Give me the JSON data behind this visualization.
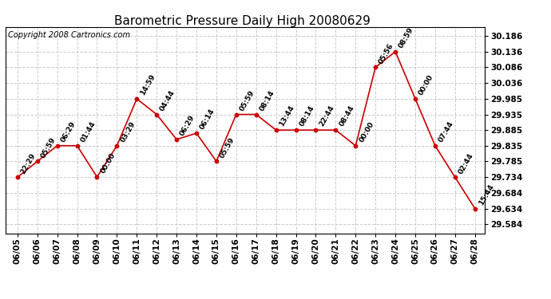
{
  "title": "Barometric Pressure Daily High 20080629",
  "copyright": "Copyright 2008 Cartronics.com",
  "dates": [
    "06/05",
    "06/06",
    "06/07",
    "06/08",
    "06/09",
    "06/10",
    "06/11",
    "06/12",
    "06/13",
    "06/14",
    "06/15",
    "06/16",
    "06/17",
    "06/18",
    "06/19",
    "06/20",
    "06/21",
    "06/22",
    "06/23",
    "06/24",
    "06/25",
    "06/26",
    "06/27",
    "06/28"
  ],
  "values": [
    29.734,
    29.785,
    29.835,
    29.835,
    29.735,
    29.835,
    29.985,
    29.935,
    29.855,
    29.875,
    29.785,
    29.935,
    29.935,
    29.885,
    29.885,
    29.885,
    29.885,
    29.835,
    30.086,
    30.136,
    29.985,
    29.835,
    29.734,
    29.634
  ],
  "labels": [
    "22:29",
    "05:59",
    "06:29",
    "01:44",
    "00:00",
    "03:29",
    "14:59",
    "04:44",
    "06:29",
    "06:14",
    "05:59",
    "05:59",
    "08:14",
    "13:44",
    "08:14",
    "22:44",
    "08:44",
    "00:00",
    "05:56",
    "08:59",
    "00:00",
    "07:44",
    "02:44",
    "15:44"
  ],
  "line_color": "#cc0000",
  "marker_color": "#cc0000",
  "bg_color": "#ffffff",
  "grid_color": "#cccccc",
  "yticks": [
    29.584,
    29.634,
    29.684,
    29.734,
    29.785,
    29.835,
    29.885,
    29.935,
    29.985,
    30.036,
    30.086,
    30.136,
    30.186
  ],
  "ylim": [
    29.555,
    30.215
  ],
  "xlim": [
    -0.6,
    23.5
  ],
  "title_fontsize": 11,
  "copyright_fontsize": 7,
  "label_fontsize": 6.5,
  "tick_fontsize": 7.5
}
